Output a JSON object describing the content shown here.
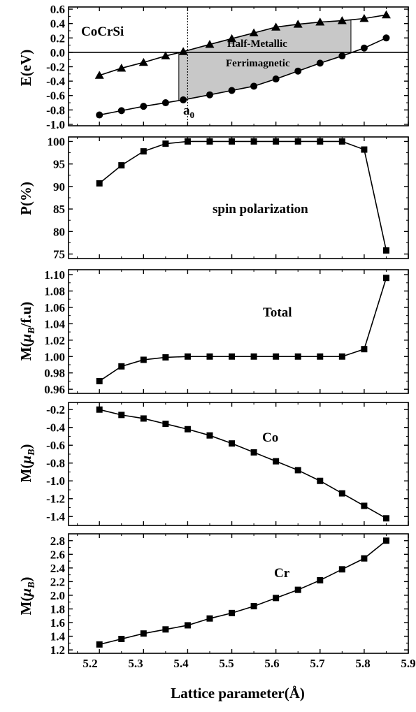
{
  "figure": {
    "xlabel": "Lattice parameter(Å)",
    "x_ticks": [
      "5.2",
      "5.3",
      "5.4",
      "5.5",
      "5.6",
      "5.7",
      "5.8",
      "5.9"
    ]
  },
  "chart_data": [
    {
      "id": "energy",
      "type": "line",
      "ylabel": "E(eV)",
      "xlim": [
        5.13,
        5.9
      ],
      "ylim": [
        -1.02,
        0.63
      ],
      "y_ticks": [
        0.6,
        0.4,
        0.2,
        0.0,
        -0.2,
        -0.4,
        -0.6,
        -0.8,
        -1.0
      ],
      "y_tick_labels": [
        "0.6",
        "0.4",
        "0.2",
        "0.0",
        "-0.2",
        "-0.4",
        "-0.6",
        "-0.8",
        "-1.0"
      ],
      "x": [
        5.2,
        5.25,
        5.3,
        5.35,
        5.39,
        5.45,
        5.5,
        5.55,
        5.6,
        5.65,
        5.7,
        5.75,
        5.8,
        5.85
      ],
      "series": [
        {
          "marker": "triangle",
          "values": [
            -0.32,
            -0.22,
            -0.14,
            -0.05,
            0.01,
            0.11,
            0.19,
            0.27,
            0.35,
            0.39,
            0.42,
            0.44,
            0.47,
            0.52
          ]
        },
        {
          "marker": "circle",
          "values": [
            -0.87,
            -0.81,
            -0.75,
            -0.7,
            -0.66,
            -0.59,
            -0.53,
            -0.47,
            -0.37,
            -0.26,
            -0.15,
            -0.05,
            0.06,
            0.2
          ]
        }
      ],
      "shaded_region": {
        "x_start": 5.38,
        "x_end": 5.77
      },
      "zero_line": 0.0,
      "a0_line": 5.4,
      "annotations": {
        "compound": "CoCrSi",
        "region_line1": "Half-Metallic",
        "region_line2": "Ferrimagnetic",
        "a0_main": "a",
        "a0_sub": "0"
      }
    },
    {
      "id": "polarization",
      "type": "line",
      "ylabel": "P(%)",
      "xlim": [
        5.13,
        5.9
      ],
      "ylim": [
        74,
        101
      ],
      "y_ticks": [
        100,
        95,
        90,
        85,
        80,
        75
      ],
      "y_tick_labels": [
        "100",
        "95",
        "90",
        "85",
        "80",
        "75"
      ],
      "x": [
        5.2,
        5.25,
        5.3,
        5.35,
        5.4,
        5.45,
        5.5,
        5.55,
        5.6,
        5.65,
        5.7,
        5.75,
        5.8,
        5.85
      ],
      "series": [
        {
          "marker": "square",
          "values": [
            90.7,
            94.7,
            97.8,
            99.5,
            100,
            100,
            100,
            100,
            100,
            100,
            100,
            100,
            98.2,
            75.8
          ]
        }
      ],
      "annotation": "spin polarization"
    },
    {
      "id": "total_moment",
      "type": "line",
      "ylabel_prefix": "M(",
      "ylabel_mu": "μ",
      "ylabel_sub": "B",
      "ylabel_suffix": "/f.u)",
      "xlim": [
        5.13,
        5.9
      ],
      "ylim": [
        0.955,
        1.106
      ],
      "y_ticks": [
        1.1,
        1.08,
        1.06,
        1.04,
        1.02,
        1.0,
        0.98,
        0.96
      ],
      "y_tick_labels": [
        "1.10",
        "1.08",
        "1.06",
        "1.04",
        "1.02",
        "1.00",
        "0.98",
        "0.96"
      ],
      "x": [
        5.2,
        5.25,
        5.3,
        5.35,
        5.4,
        5.45,
        5.5,
        5.55,
        5.6,
        5.65,
        5.7,
        5.75,
        5.8,
        5.85
      ],
      "series": [
        {
          "marker": "square",
          "values": [
            0.97,
            0.988,
            0.996,
            0.999,
            1.0,
            1.0,
            1.0,
            1.0,
            1.0,
            1.0,
            1.0,
            1.0,
            1.009,
            1.096
          ]
        }
      ],
      "annotation": "Total"
    },
    {
      "id": "co_moment",
      "type": "line",
      "ylabel_prefix": "M(",
      "ylabel_mu": "μ",
      "ylabel_sub": "B",
      "ylabel_suffix": ")",
      "xlim": [
        5.13,
        5.9
      ],
      "ylim": [
        -1.5,
        -0.12
      ],
      "y_ticks": [
        -0.2,
        -0.4,
        -0.6,
        -0.8,
        -1.0,
        -1.2,
        -1.4
      ],
      "y_tick_labels": [
        "-0.2",
        "-0.4",
        "-0.6",
        "-0.8",
        "-1.0",
        "-1.2",
        "-1.4"
      ],
      "x": [
        5.2,
        5.25,
        5.3,
        5.35,
        5.4,
        5.45,
        5.5,
        5.55,
        5.6,
        5.65,
        5.7,
        5.75,
        5.8,
        5.85
      ],
      "series": [
        {
          "marker": "square",
          "values": [
            -0.2,
            -0.26,
            -0.3,
            -0.36,
            -0.42,
            -0.49,
            -0.58,
            -0.68,
            -0.78,
            -0.88,
            -1.0,
            -1.14,
            -1.28,
            -1.42
          ]
        }
      ],
      "annotation": "Co"
    },
    {
      "id": "cr_moment",
      "type": "line",
      "ylabel_prefix": "M(",
      "ylabel_mu": "μ",
      "ylabel_sub": "B",
      "ylabel_suffix": ")",
      "xlim": [
        5.13,
        5.9
      ],
      "ylim": [
        1.15,
        2.9
      ],
      "y_ticks": [
        2.8,
        2.6,
        2.4,
        2.2,
        2.0,
        1.8,
        1.6,
        1.4,
        1.2
      ],
      "y_tick_labels": [
        "2.8",
        "2.6",
        "2.4",
        "2.2",
        "2.0",
        "1.8",
        "1.6",
        "1.4",
        "1.2"
      ],
      "x": [
        5.2,
        5.25,
        5.3,
        5.35,
        5.4,
        5.45,
        5.5,
        5.55,
        5.6,
        5.65,
        5.7,
        5.75,
        5.8,
        5.85
      ],
      "series": [
        {
          "marker": "square",
          "values": [
            1.28,
            1.36,
            1.44,
            1.5,
            1.56,
            1.66,
            1.74,
            1.84,
            1.96,
            2.08,
            2.22,
            2.38,
            2.54,
            2.8
          ]
        }
      ],
      "annotation": "Cr"
    }
  ]
}
